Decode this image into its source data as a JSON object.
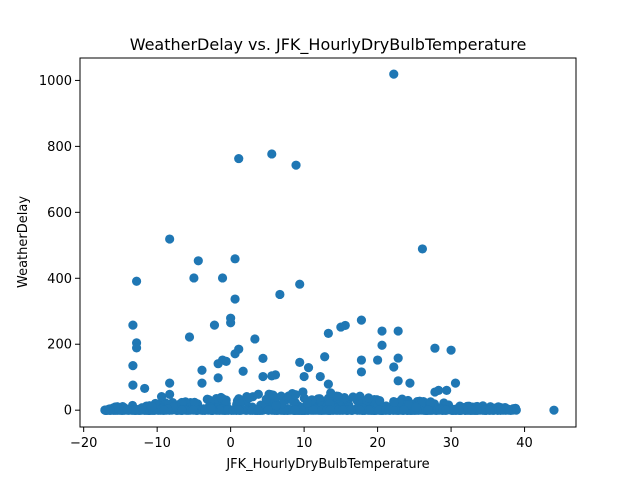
{
  "chart_data": {
    "type": "scatter",
    "title": "WeatherDelay vs. JFK_HourlyDryBulbTemperature",
    "xlabel": "JFK_HourlyDryBulbTemperature",
    "ylabel": "WeatherDelay",
    "xlim": [
      -20.5,
      47
    ],
    "ylim": [
      -51,
      1068
    ],
    "xticks": [
      -20,
      -10,
      0,
      10,
      20,
      30,
      40
    ],
    "yticks": [
      0,
      200,
      400,
      600,
      800,
      1000
    ],
    "grid": false,
    "legend": "none",
    "marker_color": "#1f77b4",
    "points": [
      [
        22.2,
        1019
      ],
      [
        5.6,
        777
      ],
      [
        1.1,
        763
      ],
      [
        8.9,
        743
      ],
      [
        -8.3,
        519
      ],
      [
        26.1,
        489
      ],
      [
        0.6,
        459
      ],
      [
        -4.4,
        453
      ],
      [
        -5.0,
        401
      ],
      [
        -1.1,
        401
      ],
      [
        -12.8,
        391
      ],
      [
        9.4,
        382
      ],
      [
        6.7,
        351
      ],
      [
        0.6,
        337
      ],
      [
        0.0,
        279
      ],
      [
        17.8,
        273
      ],
      [
        0.0,
        265
      ],
      [
        -13.3,
        258
      ],
      [
        -2.2,
        258
      ],
      [
        15.6,
        257
      ],
      [
        15.0,
        252
      ],
      [
        20.6,
        240
      ],
      [
        22.8,
        240
      ],
      [
        13.3,
        233
      ],
      [
        -5.6,
        222
      ],
      [
        3.3,
        216
      ],
      [
        -12.8,
        204
      ],
      [
        20.6,
        197
      ],
      [
        -12.8,
        189
      ],
      [
        27.8,
        188
      ],
      [
        1.1,
        185
      ],
      [
        30.0,
        182
      ],
      [
        0.6,
        171
      ],
      [
        12.8,
        162
      ],
      [
        22.8,
        158
      ],
      [
        4.4,
        157
      ],
      [
        -1.1,
        152
      ],
      [
        17.8,
        152
      ],
      [
        20.0,
        152
      ],
      [
        -0.6,
        148
      ],
      [
        9.4,
        145
      ],
      [
        -1.7,
        141
      ],
      [
        -13.3,
        135
      ],
      [
        22.2,
        131
      ],
      [
        10.6,
        129
      ],
      [
        -3.9,
        121
      ],
      [
        1.7,
        118
      ],
      [
        17.8,
        116
      ],
      [
        6.1,
        107
      ],
      [
        5.6,
        104
      ],
      [
        4.4,
        102
      ],
      [
        10.0,
        102
      ],
      [
        12.2,
        102
      ],
      [
        -1.7,
        98
      ],
      [
        -3.9,
        82
      ],
      [
        -13.3,
        76
      ],
      [
        -8.3,
        82
      ],
      [
        -11.7,
        66
      ],
      [
        30.6,
        82
      ],
      [
        24.4,
        82
      ],
      [
        13.3,
        79
      ],
      [
        22.8,
        89
      ],
      [
        -9.4,
        41
      ],
      [
        -8.3,
        48
      ],
      [
        29.4,
        60
      ],
      [
        28.3,
        60
      ],
      [
        27.8,
        55
      ],
      [
        44.0,
        0
      ]
    ],
    "dense_band": {
      "x_range": [
        -17.2,
        39.0
      ],
      "y_range": [
        0,
        60
      ],
      "count": 900
    }
  }
}
